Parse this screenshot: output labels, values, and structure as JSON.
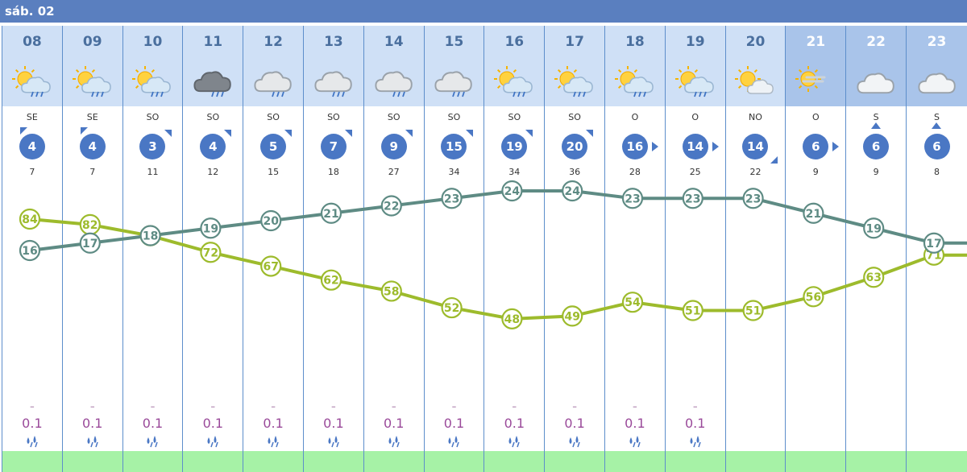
{
  "header": {
    "date_label": "sáb. 02"
  },
  "colors": {
    "temp": "#5e8b84",
    "humidity": "#9dbb2c",
    "wind_circle": "#4a77c4",
    "header_bg": "#5a7fbf",
    "green_bar": "#a6f2a6"
  },
  "columns": [
    {
      "hour": "08",
      "icon": "sun-cloud-rain-icon",
      "dir": "SE",
      "wind": "4",
      "gust": "7",
      "temp": 16,
      "hum": 84,
      "precip": "0.1",
      "dash": "–",
      "arrow": "nw"
    },
    {
      "hour": "09",
      "icon": "sun-cloud-rain-icon",
      "dir": "SE",
      "wind": "4",
      "gust": "7",
      "temp": 17,
      "hum": 82,
      "precip": "0.1",
      "dash": "–",
      "arrow": "nw"
    },
    {
      "hour": "10",
      "icon": "sun-cloud-rain-icon",
      "dir": "SO",
      "wind": "3",
      "gust": "11",
      "temp": 18,
      "hum": 78,
      "precip": "0.1",
      "dash": "–",
      "arrow": "ne"
    },
    {
      "hour": "11",
      "icon": "dark-cloud-rain-icon",
      "dir": "SO",
      "wind": "4",
      "gust": "12",
      "temp": 19,
      "hum": 72,
      "precip": "0.1",
      "dash": "–",
      "arrow": "ne"
    },
    {
      "hour": "12",
      "icon": "cloud-rain-icon",
      "dir": "SO",
      "wind": "5",
      "gust": "15",
      "temp": 20,
      "hum": 67,
      "precip": "0.1",
      "dash": "–",
      "arrow": "ne"
    },
    {
      "hour": "13",
      "icon": "cloud-rain-icon",
      "dir": "SO",
      "wind": "7",
      "gust": "18",
      "temp": 21,
      "hum": 62,
      "precip": "0.1",
      "dash": "–",
      "arrow": "ne"
    },
    {
      "hour": "14",
      "icon": "cloud-rain-icon",
      "dir": "SO",
      "wind": "9",
      "gust": "27",
      "temp": 22,
      "hum": 58,
      "precip": "0.1",
      "dash": "–",
      "arrow": "ne"
    },
    {
      "hour": "15",
      "icon": "cloud-rain-icon",
      "dir": "SO",
      "wind": "15",
      "gust": "34",
      "temp": 23,
      "hum": 52,
      "precip": "0.1",
      "dash": "–",
      "arrow": "ne"
    },
    {
      "hour": "16",
      "icon": "sun-cloud-rain-icon",
      "dir": "SO",
      "wind": "19",
      "gust": "34",
      "temp": 24,
      "hum": 48,
      "precip": "0.1",
      "dash": "–",
      "arrow": "ne"
    },
    {
      "hour": "17",
      "icon": "sun-cloud-rain-icon",
      "dir": "SO",
      "wind": "20",
      "gust": "36",
      "temp": 24,
      "hum": 49,
      "precip": "0.1",
      "dash": "–",
      "arrow": "ne"
    },
    {
      "hour": "18",
      "icon": "sun-cloud-rain-icon",
      "dir": "O",
      "wind": "16",
      "gust": "28",
      "temp": 23,
      "hum": 54,
      "precip": "0.1",
      "dash": "–",
      "arrow": "e"
    },
    {
      "hour": "19",
      "icon": "sun-cloud-rain-icon",
      "dir": "O",
      "wind": "14",
      "gust": "25",
      "temp": 23,
      "hum": 51,
      "precip": "0.1",
      "dash": "–",
      "arrow": "e"
    },
    {
      "hour": "20",
      "icon": "sun-cloud-icon",
      "dir": "NO",
      "wind": "14",
      "gust": "22",
      "temp": 23,
      "hum": 51,
      "precip": "",
      "dash": "",
      "arrow": "se"
    },
    {
      "hour": "21",
      "icon": "sun-haze-icon",
      "dir": "O",
      "wind": "6",
      "gust": "9",
      "temp": 21,
      "hum": 56,
      "precip": "",
      "dash": "",
      "arrow": "e"
    },
    {
      "hour": "22",
      "icon": "cloud-icon",
      "dir": "S",
      "wind": "6",
      "gust": "9",
      "temp": 19,
      "hum": 63,
      "precip": "",
      "dash": "",
      "arrow": "n"
    },
    {
      "hour": "23",
      "icon": "cloud-icon",
      "dir": "S",
      "wind": "6",
      "gust": "8",
      "temp": 17,
      "hum": 71,
      "precip": "",
      "dash": "",
      "arrow": "n"
    }
  ]
}
